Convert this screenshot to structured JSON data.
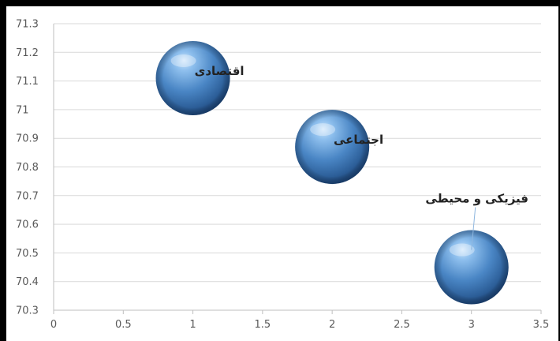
{
  "chart_data": {
    "type": "scatter",
    "variant": "bubble-3d",
    "title": "",
    "xlabel": "",
    "ylabel": "",
    "xlim": [
      0,
      3.5
    ],
    "ylim": [
      70.3,
      71.3
    ],
    "x_ticks": [
      "0",
      "0.5",
      "1",
      "1.5",
      "2",
      "2.5",
      "3",
      "3.5"
    ],
    "y_ticks": [
      "70.3",
      "70.4",
      "70.5",
      "70.6",
      "70.7",
      "70.8",
      "70.9",
      "71",
      "71.1",
      "71.2",
      "71.3"
    ],
    "grid": true,
    "legend": "none",
    "bubble_color": "#4a86c5",
    "points": [
      {
        "x": 1,
        "y": 71.11,
        "label": "اقتصادی"
      },
      {
        "x": 2,
        "y": 70.87,
        "label": "اجتماعی"
      },
      {
        "x": 3,
        "y": 70.45,
        "label": "فیزیکی و محیطی"
      }
    ]
  }
}
